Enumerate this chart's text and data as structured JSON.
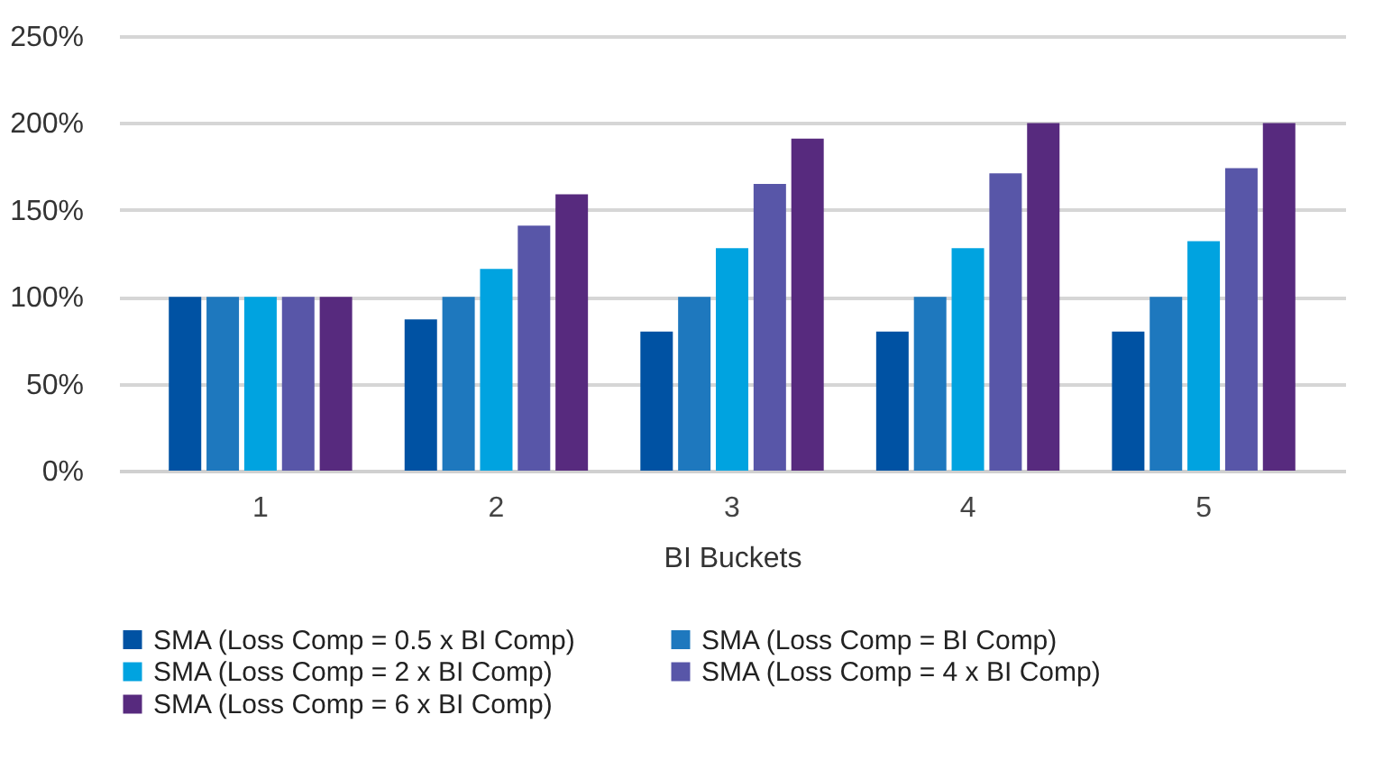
{
  "chart_data": {
    "type": "bar",
    "xlabel": "BI Buckets",
    "categories": [
      "1",
      "2",
      "3",
      "4",
      "5"
    ],
    "series": [
      {
        "name": "SMA (Loss Comp = 0.5 x BI Comp)",
        "color": "#0052a3",
        "values": [
          100,
          87,
          80,
          80,
          80
        ]
      },
      {
        "name": "SMA (Loss Comp = BI Comp)",
        "color": "#1e78be",
        "values": [
          100,
          100,
          100,
          100,
          100
        ]
      },
      {
        "name": "SMA (Loss Comp = 2 x BI Comp)",
        "color": "#00a3e0",
        "values": [
          100,
          116,
          128,
          128,
          132
        ]
      },
      {
        "name": "SMA (Loss Comp = 4 x BI Comp)",
        "color": "#5856a8",
        "values": [
          100,
          141,
          165,
          171,
          174
        ]
      },
      {
        "name": "SMA (Loss Comp = 6 x BI Comp)",
        "color": "#572a7e",
        "values": [
          100,
          159,
          191,
          200,
          200
        ]
      }
    ],
    "ylim": [
      0,
      250
    ],
    "yticks": [
      {
        "value": 0,
        "label": "0%"
      },
      {
        "value": 50,
        "label": "50%"
      },
      {
        "value": 100,
        "label": "100%"
      },
      {
        "value": 150,
        "label": "150%"
      },
      {
        "value": 200,
        "label": "200%"
      },
      {
        "value": 250,
        "label": "250%"
      }
    ],
    "grid": "y",
    "legend": "bottom"
  }
}
